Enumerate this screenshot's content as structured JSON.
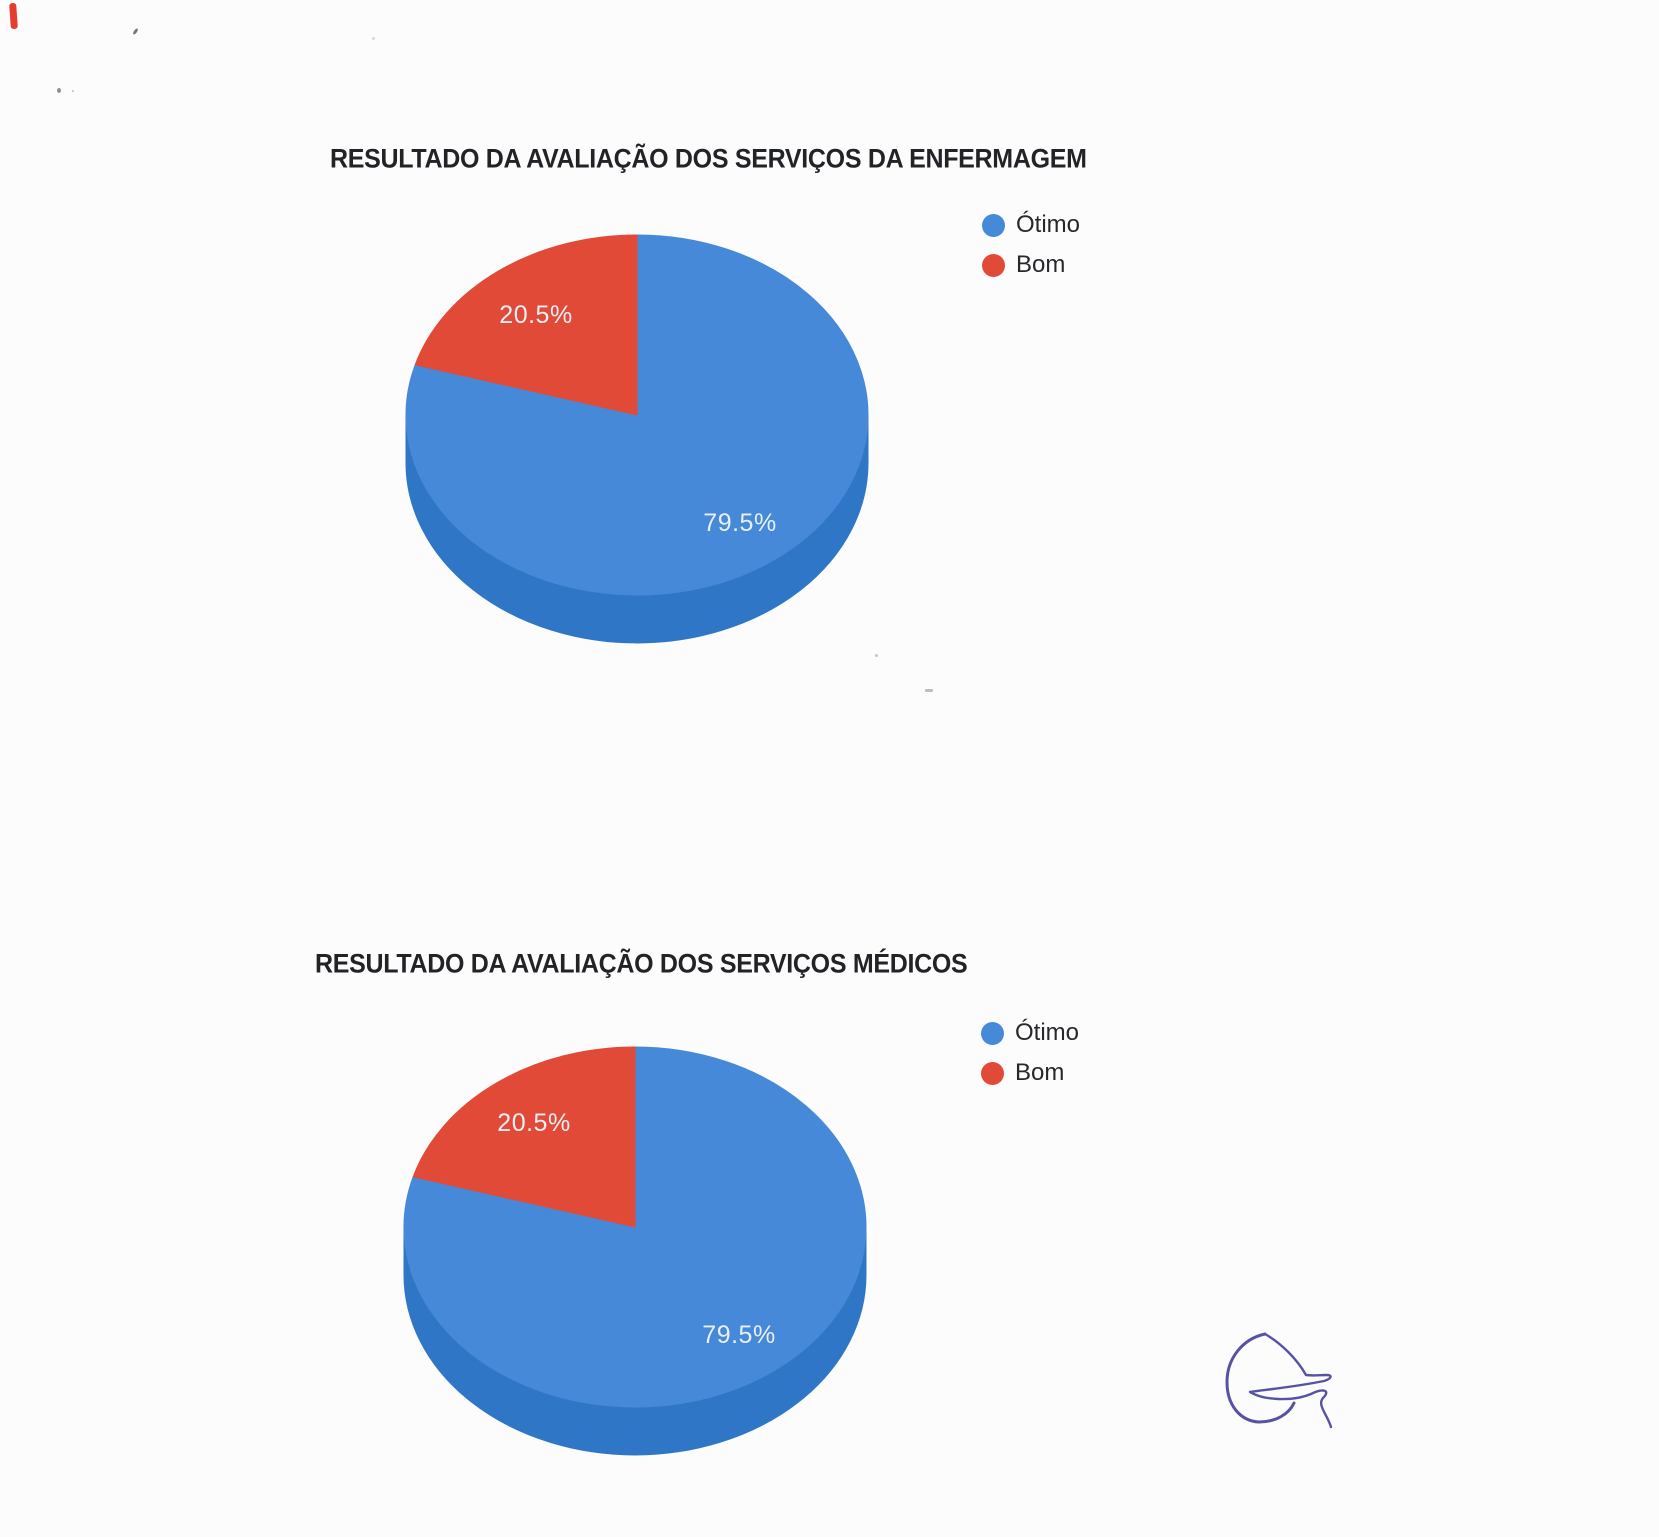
{
  "page": {
    "background_color": "#fcfcfc",
    "signature_ink_color": "#5753a2",
    "red_edge_mark_color": "#e63c30"
  },
  "chart_data": [
    {
      "type": "pie",
      "style": "3d",
      "title": "RESULTADO DA AVALIAÇÃO DOS SERVIÇOS DA ENFERMAGEM",
      "legend_position": "right",
      "depth_color": "#2f77c6",
      "slices": [
        {
          "label": "Ótimo",
          "value": 79.5,
          "pct_label": "79.5%",
          "color": "#4689d8"
        },
        {
          "label": "Bom",
          "value": 20.5,
          "pct_label": "20.5%",
          "color": "#e24a38"
        }
      ]
    },
    {
      "type": "pie",
      "style": "3d",
      "title": "RESULTADO DA AVALIAÇÃO DOS SERVIÇOS MÉDICOS",
      "legend_position": "right",
      "depth_color": "#2f77c6",
      "slices": [
        {
          "label": "Ótimo",
          "value": 79.5,
          "pct_label": "79.5%",
          "color": "#4689d8"
        },
        {
          "label": "Bom",
          "value": 20.5,
          "pct_label": "20.5%",
          "color": "#e24a38"
        }
      ]
    }
  ]
}
